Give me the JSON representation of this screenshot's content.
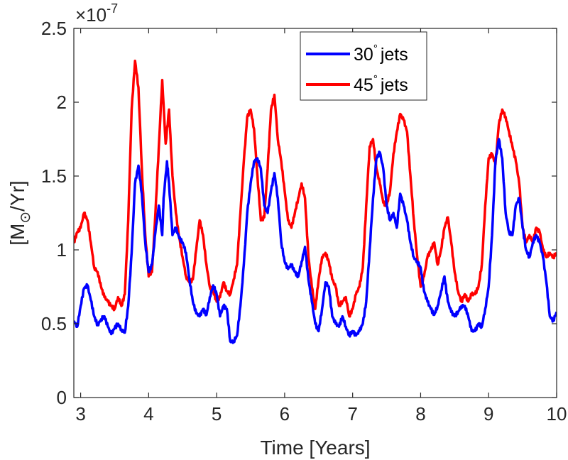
{
  "chart_data": {
    "type": "line",
    "title": "",
    "xlabel": "Time [Years]",
    "ylabel_parts": {
      "open": "[M",
      "sub": "⊙",
      "rest": "/Yr]"
    },
    "y_exponent": {
      "base": "×10",
      "power": "-7"
    },
    "xlim": [
      2.9,
      10
    ],
    "ylim": [
      0,
      2.5
    ],
    "xticks": [
      3,
      4,
      5,
      6,
      7,
      8,
      9,
      10
    ],
    "xtick_labels": [
      "3",
      "4",
      "5",
      "6",
      "7",
      "8",
      "9",
      "10"
    ],
    "yticks": [
      0,
      0.5,
      1,
      1.5,
      2,
      2.5
    ],
    "ytick_labels": [
      "0",
      "0.5",
      "1",
      "1.5",
      "2",
      "2.5"
    ],
    "grid": false,
    "legend_position": "top-right",
    "series": [
      {
        "name": "30",
        "name_suffix": "jets",
        "degree_mark": "°",
        "color": "#0000ff",
        "points": [
          [
            2.9,
            0.52
          ],
          [
            2.95,
            0.48
          ],
          [
            3.0,
            0.62
          ],
          [
            3.05,
            0.74
          ],
          [
            3.1,
            0.76
          ],
          [
            3.15,
            0.66
          ],
          [
            3.2,
            0.55
          ],
          [
            3.25,
            0.49
          ],
          [
            3.3,
            0.53
          ],
          [
            3.35,
            0.55
          ],
          [
            3.4,
            0.48
          ],
          [
            3.45,
            0.43
          ],
          [
            3.5,
            0.47
          ],
          [
            3.55,
            0.5
          ],
          [
            3.6,
            0.46
          ],
          [
            3.65,
            0.44
          ],
          [
            3.7,
            0.62
          ],
          [
            3.75,
            0.98
          ],
          [
            3.8,
            1.45
          ],
          [
            3.85,
            1.57
          ],
          [
            3.9,
            1.38
          ],
          [
            3.95,
            1.05
          ],
          [
            4.0,
            0.85
          ],
          [
            4.05,
            0.9
          ],
          [
            4.1,
            1.12
          ],
          [
            4.15,
            1.3
          ],
          [
            4.2,
            1.1
          ],
          [
            4.22,
            1.35
          ],
          [
            4.27,
            1.6
          ],
          [
            4.3,
            1.45
          ],
          [
            4.35,
            1.1
          ],
          [
            4.4,
            1.15
          ],
          [
            4.45,
            1.08
          ],
          [
            4.5,
            1.05
          ],
          [
            4.55,
            0.98
          ],
          [
            4.6,
            0.8
          ],
          [
            4.65,
            0.65
          ],
          [
            4.7,
            0.57
          ],
          [
            4.75,
            0.55
          ],
          [
            4.8,
            0.6
          ],
          [
            4.85,
            0.56
          ],
          [
            4.9,
            0.68
          ],
          [
            4.95,
            0.76
          ],
          [
            5.0,
            0.7
          ],
          [
            5.05,
            0.55
          ],
          [
            5.1,
            0.62
          ],
          [
            5.15,
            0.6
          ],
          [
            5.2,
            0.38
          ],
          [
            5.25,
            0.38
          ],
          [
            5.3,
            0.42
          ],
          [
            5.35,
            0.62
          ],
          [
            5.4,
            0.9
          ],
          [
            5.45,
            1.25
          ],
          [
            5.5,
            1.45
          ],
          [
            5.55,
            1.6
          ],
          [
            5.6,
            1.62
          ],
          [
            5.65,
            1.55
          ],
          [
            5.7,
            1.3
          ],
          [
            5.75,
            1.25
          ],
          [
            5.8,
            1.4
          ],
          [
            5.85,
            1.52
          ],
          [
            5.9,
            1.35
          ],
          [
            5.95,
            1.05
          ],
          [
            6.0,
            0.92
          ],
          [
            6.05,
            0.87
          ],
          [
            6.1,
            0.9
          ],
          [
            6.15,
            0.85
          ],
          [
            6.2,
            0.82
          ],
          [
            6.25,
            0.92
          ],
          [
            6.3,
            1.02
          ],
          [
            6.35,
            0.8
          ],
          [
            6.4,
            0.65
          ],
          [
            6.45,
            0.5
          ],
          [
            6.5,
            0.45
          ],
          [
            6.55,
            0.6
          ],
          [
            6.6,
            0.78
          ],
          [
            6.65,
            0.75
          ],
          [
            6.7,
            0.55
          ],
          [
            6.75,
            0.5
          ],
          [
            6.8,
            0.48
          ],
          [
            6.85,
            0.55
          ],
          [
            6.9,
            0.48
          ],
          [
            6.95,
            0.42
          ],
          [
            7.0,
            0.45
          ],
          [
            7.05,
            0.42
          ],
          [
            7.1,
            0.45
          ],
          [
            7.15,
            0.5
          ],
          [
            7.2,
            0.65
          ],
          [
            7.25,
            1.0
          ],
          [
            7.3,
            1.35
          ],
          [
            7.35,
            1.62
          ],
          [
            7.4,
            1.66
          ],
          [
            7.45,
            1.55
          ],
          [
            7.5,
            1.3
          ],
          [
            7.55,
            1.2
          ],
          [
            7.6,
            1.25
          ],
          [
            7.65,
            1.15
          ],
          [
            7.7,
            1.38
          ],
          [
            7.75,
            1.3
          ],
          [
            7.8,
            1.2
          ],
          [
            7.85,
            1.05
          ],
          [
            7.9,
            0.95
          ],
          [
            7.95,
            0.92
          ],
          [
            8.0,
            0.88
          ],
          [
            8.05,
            0.72
          ],
          [
            8.1,
            0.65
          ],
          [
            8.15,
            0.6
          ],
          [
            8.2,
            0.56
          ],
          [
            8.25,
            0.62
          ],
          [
            8.3,
            0.72
          ],
          [
            8.35,
            0.82
          ],
          [
            8.4,
            0.65
          ],
          [
            8.45,
            0.58
          ],
          [
            8.5,
            0.55
          ],
          [
            8.55,
            0.58
          ],
          [
            8.6,
            0.62
          ],
          [
            8.65,
            0.62
          ],
          [
            8.7,
            0.55
          ],
          [
            8.75,
            0.45
          ],
          [
            8.8,
            0.45
          ],
          [
            8.85,
            0.5
          ],
          [
            8.9,
            0.48
          ],
          [
            8.95,
            0.6
          ],
          [
            9.0,
            0.75
          ],
          [
            9.05,
            1.1
          ],
          [
            9.1,
            1.6
          ],
          [
            9.15,
            1.75
          ],
          [
            9.2,
            1.62
          ],
          [
            9.25,
            1.25
          ],
          [
            9.3,
            1.12
          ],
          [
            9.35,
            1.1
          ],
          [
            9.4,
            1.3
          ],
          [
            9.45,
            1.35
          ],
          [
            9.5,
            1.15
          ],
          [
            9.55,
            1.0
          ],
          [
            9.6,
            0.95
          ],
          [
            9.65,
            1.05
          ],
          [
            9.7,
            1.1
          ],
          [
            9.75,
            1.05
          ],
          [
            9.8,
            0.95
          ],
          [
            9.85,
            0.78
          ],
          [
            9.9,
            0.55
          ],
          [
            9.95,
            0.52
          ],
          [
            10.0,
            0.58
          ]
        ]
      },
      {
        "name": "45",
        "name_suffix": "jets",
        "degree_mark": "°",
        "color": "#ff0000",
        "points": [
          [
            2.9,
            1.05
          ],
          [
            2.95,
            1.12
          ],
          [
            3.0,
            1.15
          ],
          [
            3.05,
            1.25
          ],
          [
            3.1,
            1.2
          ],
          [
            3.15,
            1.05
          ],
          [
            3.2,
            0.88
          ],
          [
            3.25,
            0.85
          ],
          [
            3.3,
            0.75
          ],
          [
            3.35,
            0.68
          ],
          [
            3.4,
            0.65
          ],
          [
            3.45,
            0.62
          ],
          [
            3.5,
            0.6
          ],
          [
            3.55,
            0.68
          ],
          [
            3.6,
            0.62
          ],
          [
            3.65,
            0.7
          ],
          [
            3.7,
            1.2
          ],
          [
            3.75,
            1.95
          ],
          [
            3.8,
            2.28
          ],
          [
            3.85,
            2.1
          ],
          [
            3.9,
            1.55
          ],
          [
            3.95,
            1.1
          ],
          [
            4.0,
            0.82
          ],
          [
            4.05,
            0.85
          ],
          [
            4.1,
            1.25
          ],
          [
            4.15,
            1.7
          ],
          [
            4.2,
            2.15
          ],
          [
            4.25,
            1.72
          ],
          [
            4.3,
            1.95
          ],
          [
            4.35,
            1.5
          ],
          [
            4.4,
            1.25
          ],
          [
            4.45,
            1.08
          ],
          [
            4.5,
            0.95
          ],
          [
            4.55,
            0.82
          ],
          [
            4.6,
            0.78
          ],
          [
            4.65,
            0.8
          ],
          [
            4.7,
            1.0
          ],
          [
            4.75,
            1.2
          ],
          [
            4.8,
            1.1
          ],
          [
            4.85,
            0.9
          ],
          [
            4.9,
            0.75
          ],
          [
            4.95,
            0.72
          ],
          [
            5.0,
            0.65
          ],
          [
            5.05,
            0.68
          ],
          [
            5.1,
            0.78
          ],
          [
            5.15,
            0.72
          ],
          [
            5.2,
            0.7
          ],
          [
            5.25,
            0.8
          ],
          [
            5.3,
            0.9
          ],
          [
            5.35,
            1.25
          ],
          [
            5.4,
            1.6
          ],
          [
            5.45,
            1.9
          ],
          [
            5.5,
            1.95
          ],
          [
            5.55,
            1.82
          ],
          [
            5.6,
            1.5
          ],
          [
            5.65,
            1.2
          ],
          [
            5.7,
            1.22
          ],
          [
            5.75,
            1.55
          ],
          [
            5.8,
            1.95
          ],
          [
            5.85,
            2.05
          ],
          [
            5.9,
            1.75
          ],
          [
            5.95,
            1.6
          ],
          [
            6.0,
            1.4
          ],
          [
            6.05,
            1.2
          ],
          [
            6.1,
            1.15
          ],
          [
            6.15,
            1.25
          ],
          [
            6.2,
            1.35
          ],
          [
            6.25,
            1.45
          ],
          [
            6.3,
            1.35
          ],
          [
            6.35,
            0.95
          ],
          [
            6.4,
            0.75
          ],
          [
            6.45,
            0.6
          ],
          [
            6.5,
            0.8
          ],
          [
            6.55,
            0.95
          ],
          [
            6.6,
            0.98
          ],
          [
            6.65,
            0.92
          ],
          [
            6.7,
            0.8
          ],
          [
            6.75,
            0.75
          ],
          [
            6.8,
            0.62
          ],
          [
            6.85,
            0.65
          ],
          [
            6.9,
            0.68
          ],
          [
            6.95,
            0.55
          ],
          [
            7.0,
            0.6
          ],
          [
            7.05,
            0.7
          ],
          [
            7.1,
            0.75
          ],
          [
            7.15,
            0.88
          ],
          [
            7.2,
            1.3
          ],
          [
            7.25,
            1.7
          ],
          [
            7.3,
            1.75
          ],
          [
            7.35,
            1.55
          ],
          [
            7.4,
            1.45
          ],
          [
            7.45,
            1.32
          ],
          [
            7.5,
            1.3
          ],
          [
            7.55,
            1.4
          ],
          [
            7.6,
            1.65
          ],
          [
            7.65,
            1.8
          ],
          [
            7.7,
            1.92
          ],
          [
            7.75,
            1.88
          ],
          [
            7.8,
            1.8
          ],
          [
            7.85,
            1.5
          ],
          [
            7.9,
            1.2
          ],
          [
            7.95,
            0.95
          ],
          [
            8.0,
            0.75
          ],
          [
            8.05,
            0.82
          ],
          [
            8.1,
            0.95
          ],
          [
            8.15,
            1.0
          ],
          [
            8.2,
            1.05
          ],
          [
            8.25,
            0.9
          ],
          [
            8.3,
            1.0
          ],
          [
            8.35,
            1.15
          ],
          [
            8.4,
            1.22
          ],
          [
            8.45,
            1.05
          ],
          [
            8.5,
            0.85
          ],
          [
            8.55,
            0.72
          ],
          [
            8.6,
            0.65
          ],
          [
            8.65,
            0.7
          ],
          [
            8.7,
            0.65
          ],
          [
            8.75,
            0.7
          ],
          [
            8.8,
            0.7
          ],
          [
            8.85,
            0.75
          ],
          [
            8.9,
            0.9
          ],
          [
            8.95,
            1.3
          ],
          [
            9.0,
            1.62
          ],
          [
            9.05,
            1.65
          ],
          [
            9.1,
            1.58
          ],
          [
            9.15,
            1.85
          ],
          [
            9.2,
            1.95
          ],
          [
            9.25,
            1.9
          ],
          [
            9.3,
            1.8
          ],
          [
            9.35,
            1.7
          ],
          [
            9.4,
            1.6
          ],
          [
            9.45,
            1.45
          ],
          [
            9.5,
            1.15
          ],
          [
            9.55,
            1.05
          ],
          [
            9.6,
            1.1
          ],
          [
            9.65,
            1.05
          ],
          [
            9.7,
            1.15
          ],
          [
            9.75,
            1.12
          ],
          [
            9.8,
            1.0
          ],
          [
            9.85,
            0.95
          ],
          [
            9.9,
            0.98
          ],
          [
            9.95,
            0.95
          ],
          [
            10.0,
            0.98
          ]
        ]
      }
    ]
  }
}
